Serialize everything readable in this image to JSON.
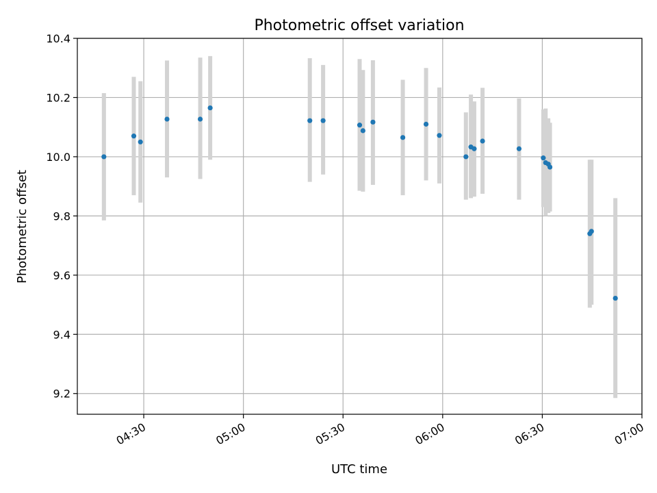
{
  "chart_data": {
    "type": "scatter",
    "title": "Photometric offset variation",
    "xlabel": "UTC time",
    "ylabel": "Photometric offset",
    "x_axis_type": "time",
    "xlim": [
      "04:10",
      "07:00"
    ],
    "ylim": [
      9.13,
      10.4
    ],
    "x_ticks": [
      "04:30",
      "05:00",
      "05:30",
      "06:00",
      "06:30",
      "07:00"
    ],
    "y_ticks": [
      "9.2",
      "9.4",
      "9.6",
      "9.8",
      "10.0",
      "10.2",
      "10.4"
    ],
    "grid": true,
    "marker_color": "#1f77b4",
    "errorbar_color": "#d3d3d3",
    "points": [
      {
        "time": "04:18",
        "y": 10.0,
        "ylow": 9.785,
        "yhigh": 10.215
      },
      {
        "time": "04:27",
        "y": 10.07,
        "ylow": 9.87,
        "yhigh": 10.27
      },
      {
        "time": "04:29",
        "y": 10.05,
        "ylow": 9.845,
        "yhigh": 10.255
      },
      {
        "time": "04:37",
        "y": 10.127,
        "ylow": 9.93,
        "yhigh": 10.325
      },
      {
        "time": "04:47",
        "y": 10.127,
        "ylow": 9.925,
        "yhigh": 10.335
      },
      {
        "time": "04:50",
        "y": 10.165,
        "ylow": 9.99,
        "yhigh": 10.34
      },
      {
        "time": "05:20",
        "y": 10.122,
        "ylow": 9.915,
        "yhigh": 10.333
      },
      {
        "time": "05:24",
        "y": 10.122,
        "ylow": 9.94,
        "yhigh": 10.31
      },
      {
        "time": "05:35",
        "y": 10.107,
        "ylow": 9.885,
        "yhigh": 10.33
      },
      {
        "time": "05:36",
        "y": 10.088,
        "ylow": 9.882,
        "yhigh": 10.293
      },
      {
        "time": "05:39",
        "y": 10.117,
        "ylow": 9.905,
        "yhigh": 10.326
      },
      {
        "time": "05:48",
        "y": 10.065,
        "ylow": 9.87,
        "yhigh": 10.26
      },
      {
        "time": "05:55",
        "y": 10.11,
        "ylow": 9.92,
        "yhigh": 10.3
      },
      {
        "time": "05:59",
        "y": 10.072,
        "ylow": 9.91,
        "yhigh": 10.234
      },
      {
        "time": "06:07",
        "y": 10.0,
        "ylow": 9.855,
        "yhigh": 10.15
      },
      {
        "time": "06:08.5",
        "y": 10.033,
        "ylow": 9.86,
        "yhigh": 10.21
      },
      {
        "time": "06:09.5",
        "y": 10.027,
        "ylow": 9.865,
        "yhigh": 10.187
      },
      {
        "time": "06:12",
        "y": 10.053,
        "ylow": 9.875,
        "yhigh": 10.233
      },
      {
        "time": "06:23",
        "y": 10.027,
        "ylow": 9.855,
        "yhigh": 10.197
      },
      {
        "time": "06:30.3",
        "y": 9.996,
        "ylow": 9.83,
        "yhigh": 10.16
      },
      {
        "time": "06:31",
        "y": 9.98,
        "ylow": 9.8,
        "yhigh": 10.163
      },
      {
        "time": "06:31.8",
        "y": 9.975,
        "ylow": 9.81,
        "yhigh": 10.13
      },
      {
        "time": "06:32.3",
        "y": 9.965,
        "ylow": 9.815,
        "yhigh": 10.115
      },
      {
        "time": "06:44.3",
        "y": 9.74,
        "ylow": 9.49,
        "yhigh": 9.99
      },
      {
        "time": "06:44.8",
        "y": 9.748,
        "ylow": 9.5,
        "yhigh": 9.99
      },
      {
        "time": "06:52",
        "y": 9.522,
        "ylow": 9.185,
        "yhigh": 9.86
      }
    ]
  }
}
